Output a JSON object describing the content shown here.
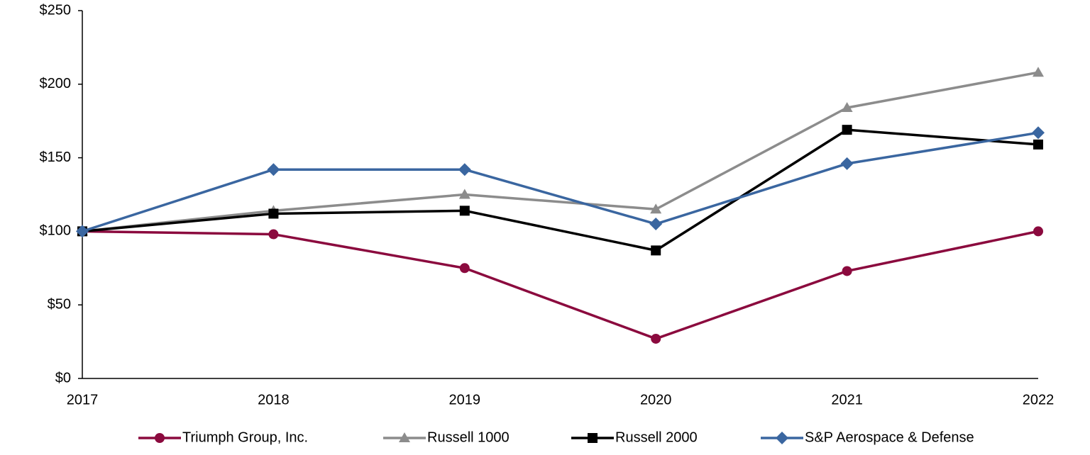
{
  "chart_data": {
    "type": "line",
    "categories": [
      "2017",
      "2018",
      "2019",
      "2020",
      "2021",
      "2022"
    ],
    "series": [
      {
        "name": "Triumph Group, Inc.",
        "color": "#8b0a3e",
        "marker": "circle",
        "values": [
          100,
          98,
          75,
          27,
          73,
          100
        ]
      },
      {
        "name": "Russell 1000",
        "color": "#8c8c8c",
        "marker": "triangle",
        "values": [
          100,
          114,
          125,
          115,
          184,
          208
        ]
      },
      {
        "name": "Russell 2000",
        "color": "#000000",
        "marker": "square",
        "values": [
          100,
          112,
          114,
          87,
          169,
          159
        ]
      },
      {
        "name": "S&P Aerospace & Defense",
        "color": "#3a66a0",
        "marker": "diamond",
        "values": [
          100,
          142,
          142,
          105,
          146,
          167
        ]
      }
    ],
    "ylim": [
      0,
      250
    ],
    "yticks": [
      {
        "value": 0,
        "label": "$0"
      },
      {
        "value": 50,
        "label": "$50"
      },
      {
        "value": 100,
        "label": "$100"
      },
      {
        "value": 150,
        "label": "$150"
      },
      {
        "value": 200,
        "label": "$200"
      },
      {
        "value": 250,
        "label": "$250"
      }
    ],
    "grid": false,
    "legend": "bottom"
  }
}
